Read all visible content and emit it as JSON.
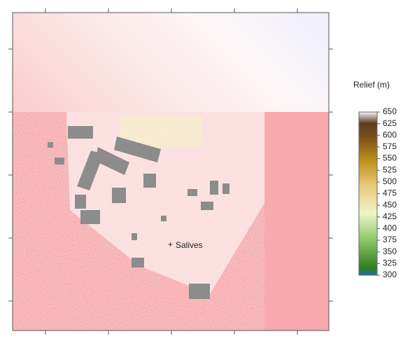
{
  "map": {
    "place_label": "Salives",
    "legend": {
      "title": "Relief (m)",
      "ticks": [
        650,
        625,
        600,
        575,
        550,
        525,
        500,
        475,
        450,
        425,
        400,
        375,
        350,
        325,
        300
      ]
    }
  }
}
